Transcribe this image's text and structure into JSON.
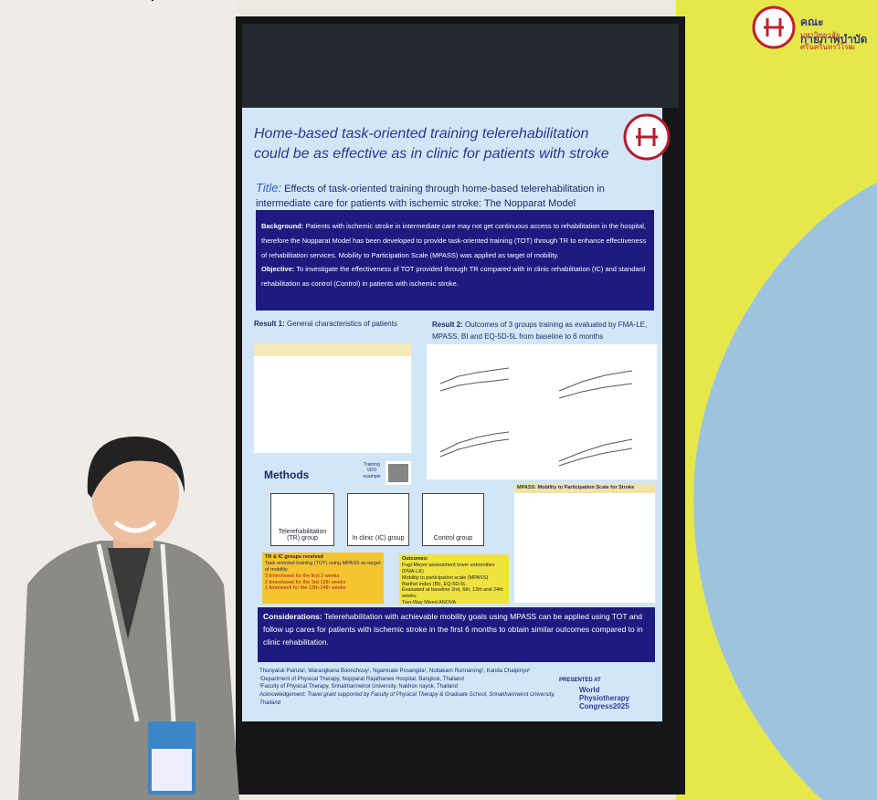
{
  "logo": {
    "name": "คณะกายภาพบำบัด",
    "university": "มหาวิทยาลัยศรีนครินทรวิโรฒ"
  },
  "poster": {
    "headline": "Home-based task-oriented training telerehabilitation could be as effective as in clinic for patients with stroke",
    "title_label": "Title:",
    "title": "Effects of task-oriented training through home-based telerehabilitation in intermediate care for patients with ischemic stroke: The Nopparat Model",
    "background_label": "Background:",
    "background": "Patients with ischemic stroke in intermediate care may not get continuous access to rehabilitation in the hospital, therefore the Nopparat Model has been developed to provide task-oriented training (TOT) through TR to enhance effectiveness of rehabilitation services. Mobility to Participation Scale (MPASS) was applied as target of mobility.",
    "objective_label": "Objective:",
    "objective": "To investigate the effectiveness of TOT provided through TR compared with in clinic rehabilitation (IC) and standard rehabilitation as control (Control) in patients with ischemic stroke.",
    "result1_label": "Result 1:",
    "result1": "General characteristics of patients",
    "result2_label": "Result 2:",
    "result2": "Outcomes of 3 groups training as evaluated by FMA-LE, MPASS, BI and EQ-5D-5L from baseline to 6 months",
    "methods": "Methods",
    "training_vdo": "Training VDO example",
    "groups": [
      "Telerehabilitation (TR) group",
      "In clinic (IC) group",
      "Control group"
    ],
    "protocol": [
      "TR & IC groups received",
      "Task oriented training (TOT) using MPASS as target of mobility",
      "3 times/week for the first 2 weeks",
      "2 times/week for the 3rd-12th weeks",
      "1 time/week for the 13th-24th weeks"
    ],
    "outcomes_label": "Outcomes:",
    "outcomes": [
      "Fugl-Meyer assessment lower extremities (FMA-LE)",
      "Mobility to participation scale (MPASS)",
      "Barthel index (BI), EQ-5D-5L",
      "Evaluated at baseline 2nd, 6th, 12th and 24th weeks",
      "Two-Way Mixed ANOVA"
    ],
    "mpass_title": "MPASS: Mobility to Participation Scale for Stroke",
    "considerations_label": "Considerations:",
    "considerations": "Telerehabilitation with achievable mobility goals using MPASS can be applied using TOT and follow up cares for patients with ischemic stroke in the first 6 months to obtain similar outcomes compared to in clinic rehabilitation.",
    "authors": "Thunyaluk Pairula¹, Warangkana Boonchouy¹, Ngamnate Posangda¹, Nuttakarn Runnarong², Kanda Chaipinyo²",
    "affiliations": [
      "¹Department of Physical Therapy, Nopparat Rajathanee Hospital, Bangkok, Thailand",
      "²Faculty of Physical Therapy, Srinakharinwirot University, Nakhon nayok, Thailand"
    ],
    "acknowledgement": "Acknowledgement: Travel grant supported by Faculty of Physical Therapy & Graduate School, Srinakharinwirot University, Thailand",
    "presented_at": "PRESENTED AT",
    "congress": [
      "World",
      "Physiotherapy",
      "Congress2025"
    ]
  }
}
